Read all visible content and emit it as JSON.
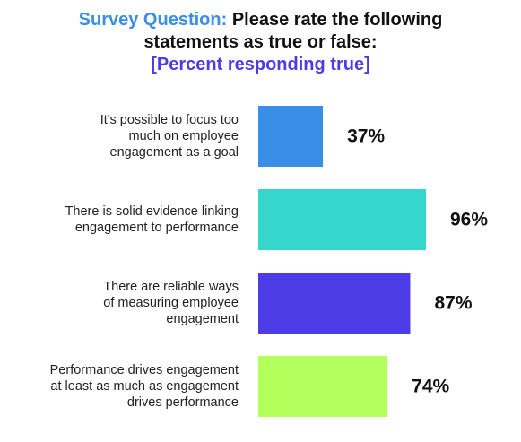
{
  "title": {
    "prefix": "Survey Question:",
    "line1_rest": " Please rate the following",
    "line2": "statements as true or false:",
    "line3": "[Percent responding true]"
  },
  "colors": {
    "prefix": "#3a8ee6",
    "subtitle": "#4b3ce6",
    "text": "#111111"
  },
  "chart_data": {
    "type": "bar",
    "orientation": "horizontal",
    "title": "Survey Question: Please rate the following statements as true or false: [Percent responding true]",
    "categories": [
      [
        "It's possible to focus too",
        "much on employee",
        "engagement as a goal"
      ],
      [
        "There is solid evidence linking",
        "engagement to performance"
      ],
      [
        "There are reliable ways",
        "of measuring employee",
        "engagement"
      ],
      [
        "Performance drives engagement",
        "at least as much as engagement",
        "drives performance"
      ]
    ],
    "values": [
      37,
      96,
      87,
      74
    ],
    "value_labels": [
      "37%",
      "96%",
      "87%",
      "74%"
    ],
    "bar_colors": [
      "#3a8ee6",
      "#36d6cc",
      "#4b3ce6",
      "#b3ff5c"
    ],
    "xlim": [
      0,
      100
    ],
    "grid": false,
    "legend": "none"
  }
}
